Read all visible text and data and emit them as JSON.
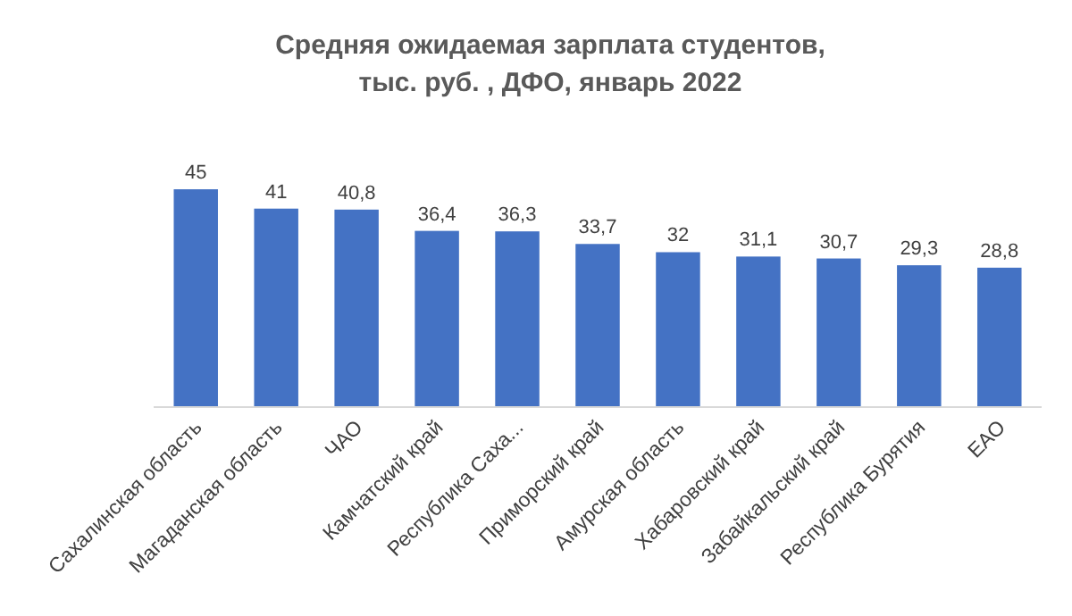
{
  "chart_data": {
    "type": "bar",
    "title": "Средняя ожидаемая зарплата студентов,\nтыс. руб. , ДФО, январь 2022",
    "categories": [
      "Сахалинская область",
      "Магаданская область",
      "ЧАО",
      "Камчатский край",
      "Республика Саха...",
      "Приморский край",
      "Амурская область",
      "Хабаровский край",
      "Забайкальский край",
      "Республика Бурятия",
      "ЕАО"
    ],
    "values": [
      45,
      41,
      40.8,
      36.4,
      36.3,
      33.7,
      32,
      31.1,
      30.7,
      29.3,
      28.8
    ],
    "value_labels": [
      "45",
      "41",
      "40,8",
      "36,4",
      "36,3",
      "33,7",
      "32",
      "31,1",
      "30,7",
      "29,3",
      "28,8"
    ],
    "color": "#4472c4"
  }
}
